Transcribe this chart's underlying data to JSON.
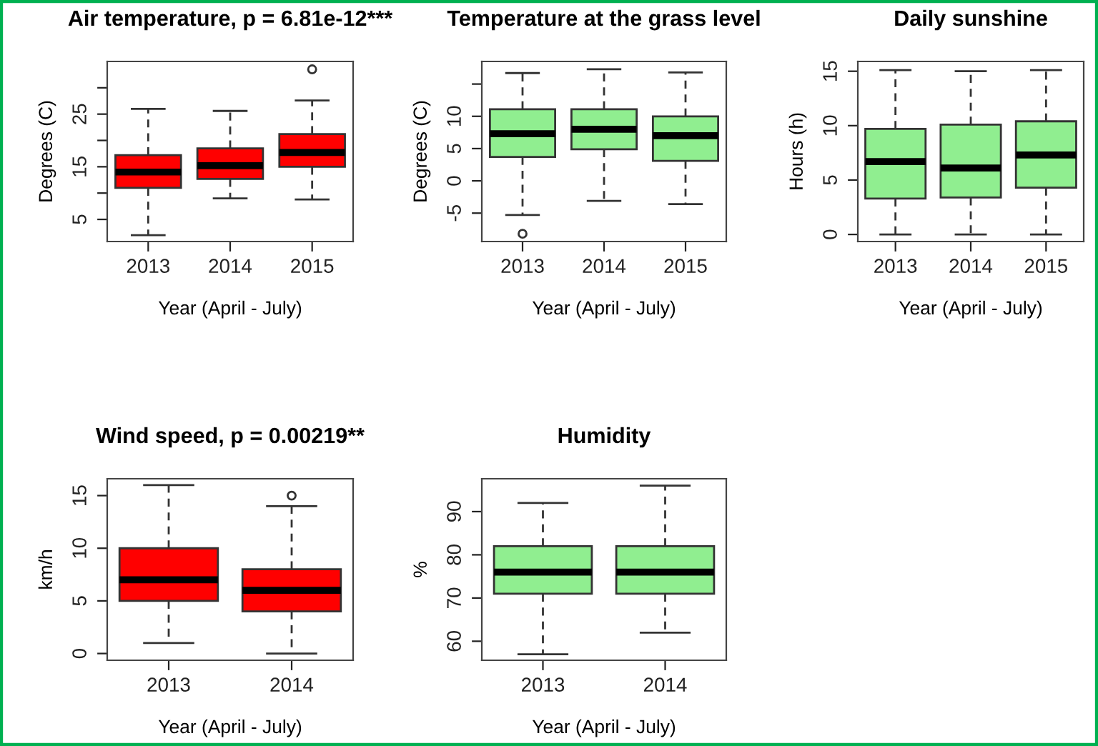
{
  "chart_data": [
    {
      "type": "box",
      "title": "Air temperature, p = 6.81e-12***",
      "xlabel": "Year (April - July)",
      "ylabel": "Degrees (C)",
      "categories": [
        "2013",
        "2014",
        "2015"
      ],
      "color": "#ff0000",
      "ylim": [
        0.8,
        35
      ],
      "yticks": [
        5,
        {
          "value": 10,
          "label": null
        },
        15,
        {
          "value": 20,
          "label": null
        },
        25,
        {
          "value": 30,
          "label": null
        }
      ],
      "boxes": [
        {
          "low": 2,
          "q1": 11,
          "median": 14,
          "q3": 17.2,
          "high": 26
        },
        {
          "low": 9,
          "q1": 12.7,
          "median": 15.2,
          "q3": 18.5,
          "high": 25.6
        },
        {
          "low": 8.8,
          "q1": 15,
          "median": 17.7,
          "q3": 21.2,
          "high": 27.6,
          "outliers": [
            33.5
          ]
        }
      ]
    },
    {
      "type": "box",
      "title": "Temperature at the grass level",
      "xlabel": "Year (April - July)",
      "ylabel": "Degrees (C)",
      "categories": [
        "2013",
        "2014",
        "2015"
      ],
      "color": "#90ee90",
      "ylim": [
        -9.4,
        18.5
      ],
      "yticks": [
        -5,
        0,
        5,
        10,
        {
          "value": 15,
          "label": null
        }
      ],
      "boxes": [
        {
          "low": -5.3,
          "q1": 3.7,
          "median": 7.3,
          "q3": 11.1,
          "high": 16.7,
          "outliers": [
            -8.2
          ]
        },
        {
          "low": -3.1,
          "q1": 4.9,
          "median": 8,
          "q3": 11.1,
          "high": 17.3
        },
        {
          "low": -3.6,
          "q1": 3.1,
          "median": 7,
          "q3": 10,
          "high": 16.8
        }
      ]
    },
    {
      "type": "box",
      "title": "Daily sunshine",
      "xlabel": "Year (April - July)",
      "ylabel": "Hours (h)",
      "categories": [
        "2013",
        "2014",
        "2015"
      ],
      "color": "#90ee90",
      "ylim": [
        -0.65,
        15.9
      ],
      "yticks": [
        0,
        5,
        10,
        15
      ],
      "boxes": [
        {
          "low": 0,
          "q1": 3.3,
          "median": 6.7,
          "q3": 9.7,
          "high": 15.1
        },
        {
          "low": 0,
          "q1": 3.4,
          "median": 6.1,
          "q3": 10.1,
          "high": 15
        },
        {
          "low": 0,
          "q1": 4.3,
          "median": 7.3,
          "q3": 10.4,
          "high": 15.1
        }
      ]
    },
    {
      "type": "box",
      "title": "Wind speed, p = 0.00219**",
      "xlabel": "Year (April - July)",
      "ylabel": "km/h",
      "categories": [
        "2013",
        "2014"
      ],
      "color": "#ff0000",
      "ylim": [
        -0.64,
        16.6
      ],
      "yticks": [
        0,
        5,
        10,
        15
      ],
      "boxes": [
        {
          "low": 1,
          "q1": 5,
          "median": 7,
          "q3": 10,
          "high": 16
        },
        {
          "low": 0,
          "q1": 4,
          "median": 6,
          "q3": 8,
          "high": 14,
          "outliers": [
            15
          ]
        }
      ]
    },
    {
      "type": "box",
      "title": "Humidity",
      "xlabel": "Year (April - July)",
      "ylabel": "%",
      "categories": [
        "2013",
        "2014"
      ],
      "color": "#90ee90",
      "ylim": [
        55.6,
        97.6
      ],
      "yticks": [
        60,
        70,
        80,
        90
      ],
      "boxes": [
        {
          "low": 57,
          "q1": 71,
          "median": 76,
          "q3": 82,
          "high": 92
        },
        {
          "low": 62,
          "q1": 71,
          "median": 76,
          "q3": 82,
          "high": 96
        }
      ]
    }
  ]
}
